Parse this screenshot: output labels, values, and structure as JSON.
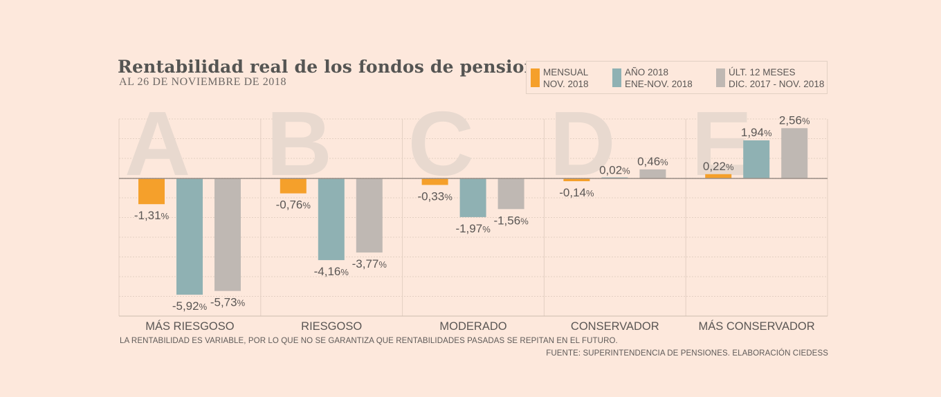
{
  "chart_data": {
    "type": "bar",
    "title": "Rentabilidad real de los fondos de pensiones",
    "subtitle": "AL 26 DE NOVIEMBRE DE 2018",
    "categories": [
      "MÁS RIESGOSO",
      "RIESGOSO",
      "MODERADO",
      "CONSERVADOR",
      "MÁS CONSERVADOR"
    ],
    "fund_letters": [
      "A",
      "B",
      "C",
      "D",
      "E"
    ],
    "series": [
      {
        "name": "MENSUAL NOV. 2018",
        "legend_line1": "MENSUAL",
        "legend_line2": "NOV. 2018",
        "color": "#f5a02b",
        "values": [
          -1.31,
          -0.76,
          -0.33,
          -0.14,
          0.22
        ],
        "labels": [
          "-1,31",
          "-0,76",
          "-0,33",
          "-0,14",
          "0,22"
        ]
      },
      {
        "name": "AÑO 2018 ENE-NOV. 2018",
        "legend_line1": "AÑO 2018",
        "legend_line2": "ENE-NOV. 2018",
        "color": "#8fb1b3",
        "values": [
          -5.92,
          -4.16,
          -1.97,
          0.02,
          1.94
        ],
        "labels": [
          "-5,92",
          "-4,16",
          "-1,97",
          "0,02",
          "1,94"
        ]
      },
      {
        "name": "ÚLT. 12 MESES DIC. 2017 - NOV. 2018",
        "legend_line1": "ÚLT. 12 MESES",
        "legend_line2": "DIC. 2017 - NOV. 2018",
        "color": "#bfb8b3",
        "values": [
          -5.73,
          -3.77,
          -1.56,
          0.46,
          2.56
        ],
        "labels": [
          "-5,73",
          "-3,77",
          "-1,56",
          "0,46",
          "2,56"
        ]
      }
    ],
    "value_unit": "%",
    "ylim": [
      -7,
      3
    ],
    "grid": true,
    "legend_position": "top-right"
  },
  "footnote": "LA RENTABILIDAD ES VARIABLE, POR LO QUE NO SE GARANTIZA QUE RENTABILIDADES PASADAS SE REPITAN EN EL FUTURO.",
  "source": "FUENTE: SUPERINTENDENCIA DE PENSIONES. ELABORACIÓN CIEDESS",
  "colors": {
    "background": "#fde8dc",
    "grid": "#e3cfc2",
    "zero_line": "#9a8e86",
    "fund_letter": "#e8d9cf",
    "text": "#5a5654"
  }
}
